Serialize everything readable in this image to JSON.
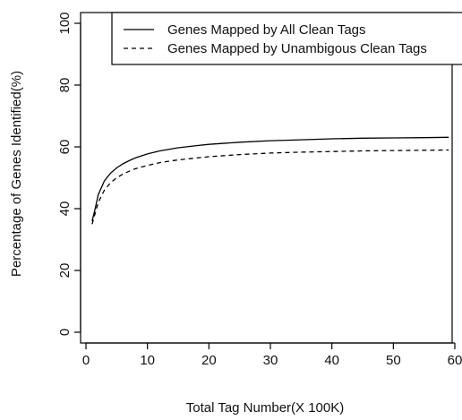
{
  "chart_data": {
    "type": "line",
    "title": "",
    "xlabel": "Total Tag Number(X 100K)",
    "ylabel": "Percentage of Genes Identified(%)",
    "xlim": [
      0,
      60
    ],
    "ylim": [
      0,
      100
    ],
    "xticks": [
      0,
      10,
      20,
      30,
      40,
      50,
      60
    ],
    "yticks": [
      0,
      20,
      40,
      60,
      80,
      100
    ],
    "x_tick_labels": [
      "0",
      "10",
      "20",
      "30",
      "40",
      "50",
      "60"
    ],
    "y_tick_labels": [
      "0",
      "20",
      "40",
      "60",
      "80",
      "100"
    ],
    "grid": false,
    "legend_position": "top-right",
    "series": [
      {
        "name": "Genes Mapped by All Clean Tags",
        "line_style": "solid",
        "color": "#000000",
        "x": [
          1,
          1.5,
          2,
          3,
          4,
          5,
          6,
          7,
          8,
          10,
          12,
          15,
          18,
          20,
          25,
          30,
          35,
          40,
          45,
          50,
          55,
          59
        ],
        "y": [
          36,
          40,
          44.5,
          49,
          51.5,
          53.2,
          54.5,
          55.5,
          56.4,
          57.7,
          58.7,
          59.7,
          60.4,
          60.8,
          61.5,
          62,
          62.3,
          62.6,
          62.8,
          62.9,
          63,
          63.1
        ]
      },
      {
        "name": "Genes Mapped by Unambigous Clean Tags",
        "line_style": "dashed",
        "color": "#000000",
        "x": [
          1,
          1.5,
          2,
          3,
          4,
          5,
          6,
          7,
          8,
          10,
          12,
          15,
          18,
          20,
          25,
          30,
          35,
          40,
          45,
          50,
          55,
          59
        ],
        "y": [
          35,
          38.5,
          42,
          46,
          48.4,
          50,
          51.2,
          52.1,
          52.9,
          54,
          54.9,
          55.8,
          56.4,
          56.8,
          57.5,
          58,
          58.3,
          58.5,
          58.7,
          58.8,
          58.9,
          59
        ]
      }
    ]
  }
}
